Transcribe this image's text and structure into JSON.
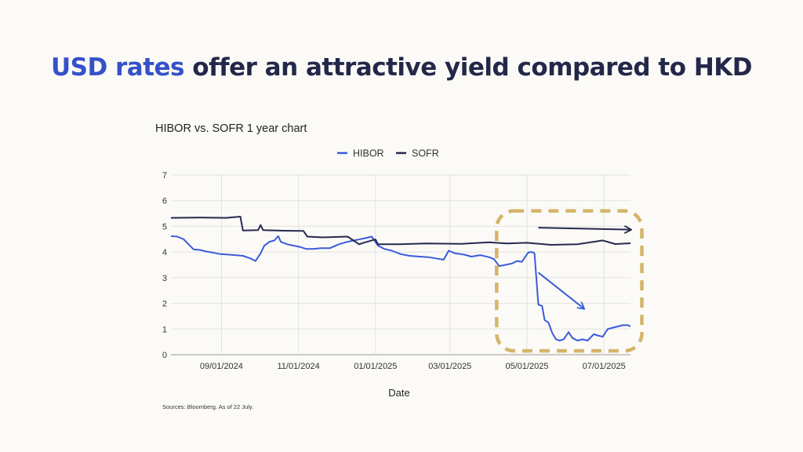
{
  "headline": {
    "accent": "USD rates",
    "rest": " offer an attractive yield compared to HKD"
  },
  "source_note": "Sources: Bloomberg. As of 22 July.",
  "colors": {
    "hibor": "#3a5bd9",
    "sofr": "#26294f",
    "highlight": "#d4b56a",
    "grid": "#e2e2e2"
  },
  "chart_data": {
    "type": "line",
    "title": "HIBOR vs. SOFR 1 year chart",
    "xlabel": "Date",
    "ylabel": "",
    "ylim": [
      0,
      7
    ],
    "xlim": [
      "2024-07-23",
      "2025-07-22"
    ],
    "yticks": [
      0,
      1,
      2,
      3,
      4,
      5,
      6,
      7
    ],
    "xticks": [
      "09/01/2024",
      "11/01/2024",
      "01/01/2025",
      "03/01/2025",
      "05/01/2025",
      "07/01/2025"
    ],
    "grid": true,
    "legend": "top-center",
    "series": [
      {
        "name": "HIBOR",
        "color": "#3a5bd9",
        "points": [
          [
            "2024-07-23",
            4.62
          ],
          [
            "2024-07-28",
            4.6
          ],
          [
            "2024-08-02",
            4.5
          ],
          [
            "2024-08-06",
            4.3
          ],
          [
            "2024-08-10",
            4.1
          ],
          [
            "2024-08-15",
            4.08
          ],
          [
            "2024-08-20",
            4.02
          ],
          [
            "2024-08-25",
            3.98
          ],
          [
            "2024-08-31",
            3.92
          ],
          [
            "2024-09-06",
            3.9
          ],
          [
            "2024-09-12",
            3.88
          ],
          [
            "2024-09-18",
            3.85
          ],
          [
            "2024-09-24",
            3.75
          ],
          [
            "2024-09-28",
            3.65
          ],
          [
            "2024-10-02",
            3.95
          ],
          [
            "2024-10-05",
            4.25
          ],
          [
            "2024-10-09",
            4.4
          ],
          [
            "2024-10-13",
            4.45
          ],
          [
            "2024-10-16",
            4.62
          ],
          [
            "2024-10-18",
            4.4
          ],
          [
            "2024-10-23",
            4.3
          ],
          [
            "2024-10-28",
            4.25
          ],
          [
            "2024-11-02",
            4.2
          ],
          [
            "2024-11-07",
            4.12
          ],
          [
            "2024-11-12",
            4.12
          ],
          [
            "2024-11-19",
            4.15
          ],
          [
            "2024-11-26",
            4.15
          ],
          [
            "2024-12-03",
            4.3
          ],
          [
            "2024-12-10",
            4.4
          ],
          [
            "2024-12-15",
            4.45
          ],
          [
            "2024-12-20",
            4.5
          ],
          [
            "2024-12-25",
            4.55
          ],
          [
            "2024-12-29",
            4.6
          ],
          [
            "2025-01-03",
            4.25
          ],
          [
            "2025-01-08",
            4.12
          ],
          [
            "2025-01-14",
            4.05
          ],
          [
            "2025-01-21",
            3.92
          ],
          [
            "2025-01-28",
            3.85
          ],
          [
            "2025-02-05",
            3.82
          ],
          [
            "2025-02-12",
            3.8
          ],
          [
            "2025-02-18",
            3.75
          ],
          [
            "2025-02-24",
            3.7
          ],
          [
            "2025-02-28",
            4.05
          ],
          [
            "2025-03-05",
            3.95
          ],
          [
            "2025-03-12",
            3.9
          ],
          [
            "2025-03-18",
            3.82
          ],
          [
            "2025-03-25",
            3.88
          ],
          [
            "2025-04-01",
            3.8
          ],
          [
            "2025-04-05",
            3.72
          ],
          [
            "2025-04-09",
            3.45
          ],
          [
            "2025-04-14",
            3.5
          ],
          [
            "2025-04-19",
            3.55
          ],
          [
            "2025-04-23",
            3.65
          ],
          [
            "2025-04-27",
            3.62
          ],
          [
            "2025-05-02",
            3.98
          ],
          [
            "2025-05-05",
            4.0
          ],
          [
            "2025-05-07",
            3.95
          ],
          [
            "2025-05-10",
            1.95
          ],
          [
            "2025-05-13",
            1.9
          ],
          [
            "2025-05-15",
            1.35
          ],
          [
            "2025-05-18",
            1.25
          ],
          [
            "2025-05-21",
            0.85
          ],
          [
            "2025-05-24",
            0.6
          ],
          [
            "2025-05-27",
            0.55
          ],
          [
            "2025-05-30",
            0.6
          ],
          [
            "2025-06-03",
            0.88
          ],
          [
            "2025-06-06",
            0.65
          ],
          [
            "2025-06-10",
            0.55
          ],
          [
            "2025-06-14",
            0.6
          ],
          [
            "2025-06-18",
            0.55
          ],
          [
            "2025-06-23",
            0.8
          ],
          [
            "2025-06-26",
            0.75
          ],
          [
            "2025-06-30",
            0.7
          ],
          [
            "2025-07-04",
            1.0
          ],
          [
            "2025-07-08",
            1.05
          ],
          [
            "2025-07-12",
            1.1
          ],
          [
            "2025-07-16",
            1.15
          ],
          [
            "2025-07-20",
            1.15
          ],
          [
            "2025-07-22",
            1.1
          ]
        ]
      },
      {
        "name": "SOFR",
        "color": "#26294f",
        "points": [
          [
            "2024-07-23",
            5.33
          ],
          [
            "2024-08-15",
            5.34
          ],
          [
            "2024-09-05",
            5.33
          ],
          [
            "2024-09-16",
            5.38
          ],
          [
            "2024-09-18",
            4.84
          ],
          [
            "2024-09-30",
            4.85
          ],
          [
            "2024-10-02",
            5.05
          ],
          [
            "2024-10-04",
            4.85
          ],
          [
            "2024-10-20",
            4.83
          ],
          [
            "2024-11-05",
            4.82
          ],
          [
            "2024-11-08",
            4.6
          ],
          [
            "2024-11-20",
            4.57
          ],
          [
            "2024-12-10",
            4.6
          ],
          [
            "2024-12-19",
            4.3
          ],
          [
            "2024-12-22",
            4.35
          ],
          [
            "2025-01-01",
            4.49
          ],
          [
            "2025-01-03",
            4.3
          ],
          [
            "2025-01-20",
            4.3
          ],
          [
            "2025-02-10",
            4.33
          ],
          [
            "2025-03-10",
            4.32
          ],
          [
            "2025-04-01",
            4.38
          ],
          [
            "2025-04-15",
            4.33
          ],
          [
            "2025-05-01",
            4.36
          ],
          [
            "2025-05-20",
            4.28
          ],
          [
            "2025-06-10",
            4.3
          ],
          [
            "2025-06-30",
            4.45
          ],
          [
            "2025-07-10",
            4.31
          ],
          [
            "2025-07-22",
            4.34
          ]
        ]
      }
    ],
    "annotations": [
      {
        "type": "arrow",
        "note": "flat arrow over SOFR",
        "from": [
          "2025-05-10",
          4.95
        ],
        "to": [
          "2025-07-22",
          4.87
        ]
      },
      {
        "type": "arrow",
        "note": "downward arrow toward HIBOR drop",
        "from": [
          "2025-05-10",
          3.2
        ],
        "to": [
          "2025-06-15",
          1.8
        ]
      },
      {
        "type": "dashed-box",
        "from": [
          "2025-04-07",
          0.15
        ],
        "to": [
          "2025-07-31",
          5.6
        ]
      }
    ]
  }
}
